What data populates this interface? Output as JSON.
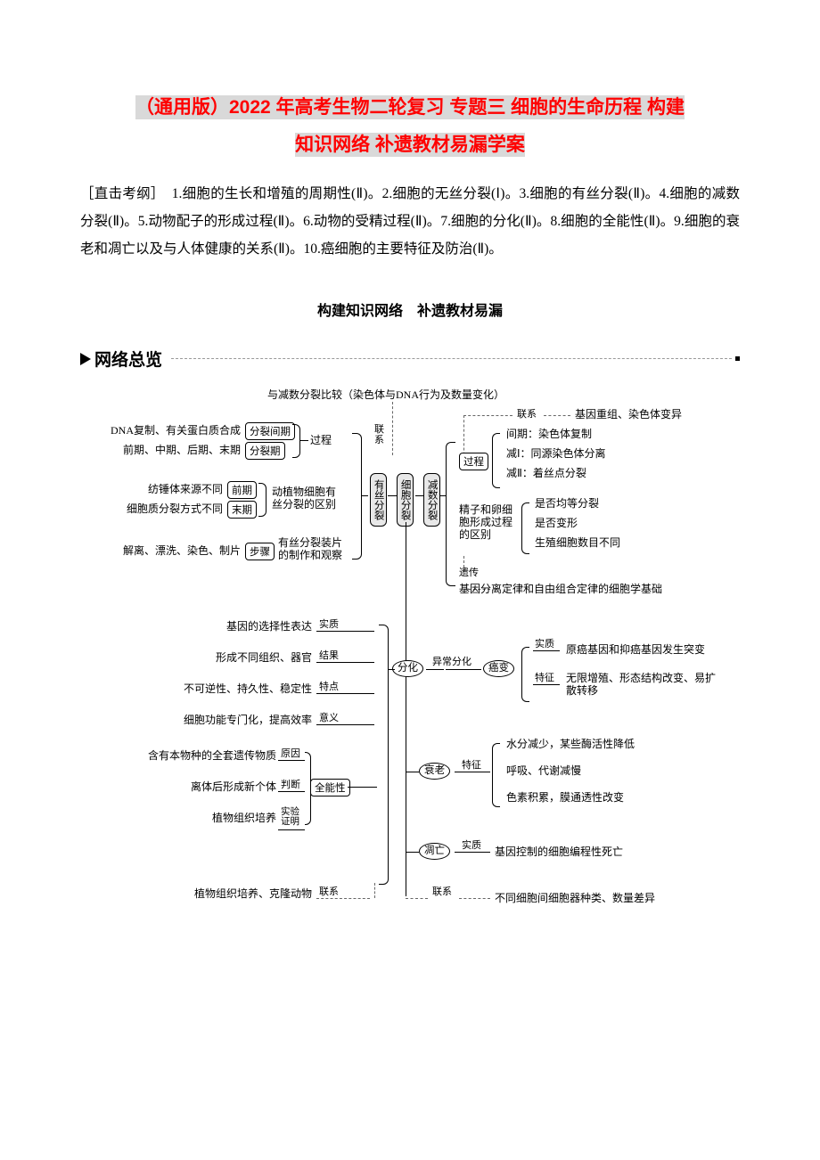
{
  "title": {
    "line1": "（通用版）2022 年高考生物二轮复习 专题三 细胞的生命历程 构建",
    "line2": "知识网络 补遗教材易漏学案"
  },
  "outline_text": "［直击考纲］　1.细胞的生长和增殖的周期性(Ⅱ)。2.细胞的无丝分裂(Ⅰ)。3.细胞的有丝分裂(Ⅱ)。4.细胞的减数分裂(Ⅱ)。5.动物配子的形成过程(Ⅱ)。6.动物的受精过程(Ⅱ)。7.细胞的分化(Ⅱ)。8.细胞的全能性(Ⅱ)。9.细胞的衰老和凋亡以及与人体健康的关系(Ⅱ)。10.癌细胞的主要特征及防治(Ⅱ)。",
  "section_header": "构建知识网络　补遗教材易漏",
  "net_overview": "网络总览",
  "diagram": {
    "top_note": "与减数分裂比较（染色体与DNA行为及数量变化）",
    "mitosis": {
      "dna": "DNA复制、有关蛋白质合成",
      "interphase": "分裂间期",
      "phases": "前期、中期、后期、末期",
      "division": "分裂期",
      "process": "过程",
      "spindle": "纺锤体来源不同",
      "early": "前期",
      "cyto": "细胞质分裂方式不同",
      "late": "末期",
      "diff_label": "动植物细胞有\n丝分裂的区别",
      "steps_list": "解离、漂洗、染色、制片",
      "steps": "步骤",
      "slide": "有丝分裂装片\n的制作和观察",
      "lianxi": "联\n系",
      "you": "有丝分裂",
      "cell": "细胞分裂",
      "jian": "减数分裂"
    },
    "meiosis": {
      "lianxi": "联系",
      "recomb": "基因重组、染色体变异",
      "proc": "过程",
      "p1": "间期：染色体复制",
      "p2": "减Ⅰ：同源染色体分离",
      "p3": "减Ⅱ：着丝点分裂",
      "diff": "精子和卵细\n胞形成过程\n的区别",
      "d1": "是否均等分裂",
      "d2": "是否变形",
      "d3": "生殖细胞数目不同",
      "inherit": "遗传",
      "law": "基因分离定律和自由组合定律的细胞学基础"
    },
    "fenhua": {
      "node": "分化",
      "yichang": "异常分化",
      "l1": "基因的选择性表达",
      "t1": "实质",
      "l2": "形成不同组织、器官",
      "t2": "结果",
      "l3": "不可逆性、持久性、稳定性",
      "t3": "特点",
      "l4": "细胞功能专门化，提高效率",
      "t4": "意义",
      "l5": "含有本物种的全套遗传物质",
      "t5": "原因",
      "l6": "离体后形成新个体",
      "t6": "判断",
      "quan": "全能性",
      "l7": "植物组织培养",
      "t7": "实验\n证明",
      "l8": "植物组织培养、克隆动物",
      "t8": "联系"
    },
    "cancer": {
      "node": "癌变",
      "t1": "实质",
      "r1": "原癌基因和抑癌基因发生突变",
      "t2": "特征",
      "r2": "无限增殖、形态结构改变、易扩\n散转移"
    },
    "aging": {
      "node": "衰老",
      "tag": "特征",
      "r1": "水分减少，某些酶活性降低",
      "r2": "呼吸、代谢减慢",
      "r3": "色素积累，膜通透性改变"
    },
    "apoptosis": {
      "node": "凋亡",
      "tag": "实质",
      "r": "基因控制的细胞编程性死亡"
    },
    "bottom": {
      "tag": "联系",
      "r": "不同细胞间细胞器种类、数量差异"
    }
  }
}
